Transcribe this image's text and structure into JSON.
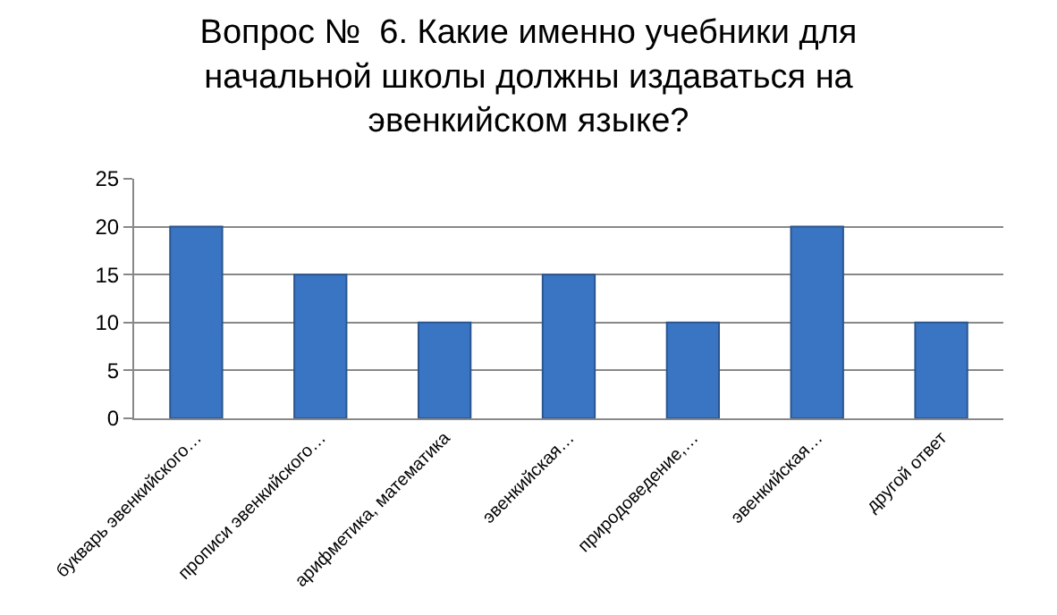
{
  "chart_data": {
    "type": "bar",
    "title": "Вопрос №  6. Какие именно учебники для начальной школы должны издаваться на эвенкийском языке?",
    "categories": [
      "букварь эвенкийского…",
      "прописи эвенкийского…",
      "арифметика, математика",
      "эвенкийская…",
      "природоведение,…",
      "эвенкийская…",
      "другой ответ"
    ],
    "values": [
      20,
      15,
      10,
      15,
      10,
      20,
      10
    ],
    "color": "#3a75c4",
    "ylim": [
      0,
      25
    ],
    "yticks": [
      0,
      5,
      10,
      15,
      20,
      25
    ],
    "grid": "y",
    "legend": false
  }
}
